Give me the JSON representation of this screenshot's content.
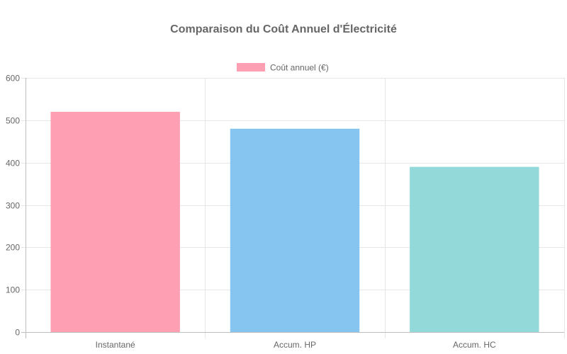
{
  "chart_data": {
    "type": "bar",
    "title": "Comparaison du Coût Annuel d'Électricité",
    "categories": [
      "Instantané",
      "Accum. HP",
      "Accum. HC"
    ],
    "series": [
      {
        "name": "Coût annuel (€)",
        "values": [
          520,
          480,
          390
        ],
        "colors": [
          "#ff9fb3",
          "#86c5f0",
          "#93d9d9"
        ]
      }
    ],
    "ylim": [
      0,
      600
    ],
    "yticks": [
      0,
      100,
      200,
      300,
      400,
      500,
      600
    ],
    "legend": "top",
    "grid": true
  }
}
